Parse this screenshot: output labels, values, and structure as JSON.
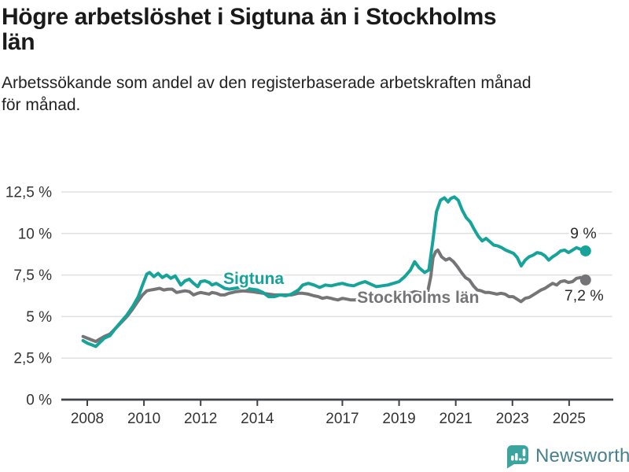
{
  "header": {
    "title_lines": [
      "Högre arbetslöshet i Sigtuna än i Stockholms",
      "län"
    ],
    "subtitle_lines": [
      "Arbetssökande som andel av den registerbaserade arbetskraften månad",
      "för månad."
    ]
  },
  "footer": {
    "brand": "Newsworthy",
    "logo_icon": "bar-chart-speech-bubble",
    "logo_color": "#3aa49f",
    "brand_text_color": "#46818e"
  },
  "chart_data": {
    "type": "line",
    "title": "Högre arbetslöshet i Sigtuna än i Stockholms län",
    "subtitle": "Arbetssökande som andel av den registerbaserade arbetskraften månad för månad.",
    "unit": "%",
    "grid": true,
    "xlim": [
      2007.85,
      2026.4
    ],
    "ylim": [
      0,
      13.2
    ],
    "x_ticks": [
      2008,
      2010,
      2012,
      2014,
      2017,
      2019,
      2021,
      2023,
      2025
    ],
    "y_ticks": [
      {
        "value": 0,
        "label": "0 %"
      },
      {
        "value": 2.5,
        "label": "2,5 %"
      },
      {
        "value": 5,
        "label": "5 %"
      },
      {
        "value": 7.5,
        "label": "7,5 %"
      },
      {
        "value": 10,
        "label": "10 %"
      },
      {
        "value": 12.5,
        "label": "12,5 %"
      }
    ],
    "colors": {
      "grid": "#e0e0e0",
      "axis": "#3d434b",
      "tick_label": "#333333",
      "end_label": "#2a2a2a"
    },
    "series": [
      {
        "name": "Sigtuna",
        "color": "#15a39a",
        "end_label": "9 %",
        "label_at": [
          2012.8,
          7.3
        ],
        "points": [
          [
            2007.85,
            3.55
          ],
          [
            2008.0,
            3.4
          ],
          [
            2008.15,
            3.3
          ],
          [
            2008.3,
            3.2
          ],
          [
            2008.45,
            3.45
          ],
          [
            2008.6,
            3.7
          ],
          [
            2008.8,
            3.85
          ],
          [
            2009.0,
            4.3
          ],
          [
            2009.2,
            4.7
          ],
          [
            2009.4,
            5.1
          ],
          [
            2009.6,
            5.6
          ],
          [
            2009.8,
            6.2
          ],
          [
            2009.95,
            6.9
          ],
          [
            2010.1,
            7.55
          ],
          [
            2010.2,
            7.65
          ],
          [
            2010.35,
            7.4
          ],
          [
            2010.5,
            7.6
          ],
          [
            2010.65,
            7.35
          ],
          [
            2010.8,
            7.5
          ],
          [
            2010.95,
            7.3
          ],
          [
            2011.1,
            7.45
          ],
          [
            2011.3,
            6.9
          ],
          [
            2011.45,
            7.15
          ],
          [
            2011.6,
            7.25
          ],
          [
            2011.75,
            7.0
          ],
          [
            2011.9,
            6.8
          ],
          [
            2012.0,
            7.1
          ],
          [
            2012.15,
            7.15
          ],
          [
            2012.3,
            7.05
          ],
          [
            2012.4,
            6.9
          ],
          [
            2012.55,
            7.0
          ],
          [
            2012.7,
            6.85
          ],
          [
            2012.85,
            6.7
          ],
          [
            2013.0,
            6.65
          ],
          [
            2013.2,
            6.7
          ],
          [
            2013.4,
            6.75
          ],
          [
            2013.6,
            6.7
          ],
          [
            2013.8,
            6.65
          ],
          [
            2014.0,
            6.6
          ],
          [
            2014.2,
            6.45
          ],
          [
            2014.4,
            6.2
          ],
          [
            2014.6,
            6.2
          ],
          [
            2014.8,
            6.3
          ],
          [
            2015.0,
            6.25
          ],
          [
            2015.2,
            6.35
          ],
          [
            2015.45,
            6.6
          ],
          [
            2015.6,
            6.9
          ],
          [
            2015.8,
            7.0
          ],
          [
            2016.0,
            6.9
          ],
          [
            2016.2,
            6.75
          ],
          [
            2016.4,
            6.9
          ],
          [
            2016.6,
            6.85
          ],
          [
            2016.85,
            6.95
          ],
          [
            2017.0,
            7.0
          ],
          [
            2017.2,
            6.9
          ],
          [
            2017.4,
            6.85
          ],
          [
            2017.6,
            7.0
          ],
          [
            2017.8,
            7.1
          ],
          [
            2018.0,
            6.95
          ],
          [
            2018.2,
            6.8
          ],
          [
            2018.4,
            6.85
          ],
          [
            2018.6,
            6.9
          ],
          [
            2018.8,
            7.0
          ],
          [
            2019.0,
            7.1
          ],
          [
            2019.2,
            7.4
          ],
          [
            2019.4,
            7.8
          ],
          [
            2019.55,
            8.3
          ],
          [
            2019.7,
            7.95
          ],
          [
            2019.9,
            7.65
          ],
          [
            2020.05,
            7.8
          ],
          [
            2020.18,
            9.4
          ],
          [
            2020.32,
            11.3
          ],
          [
            2020.46,
            12.0
          ],
          [
            2020.6,
            12.15
          ],
          [
            2020.73,
            11.9
          ],
          [
            2020.82,
            12.1
          ],
          [
            2020.95,
            12.2
          ],
          [
            2021.09,
            12.0
          ],
          [
            2021.23,
            11.4
          ],
          [
            2021.37,
            10.95
          ],
          [
            2021.51,
            10.7
          ],
          [
            2021.65,
            10.25
          ],
          [
            2021.79,
            9.85
          ],
          [
            2021.93,
            9.55
          ],
          [
            2022.07,
            9.7
          ],
          [
            2022.21,
            9.5
          ],
          [
            2022.34,
            9.3
          ],
          [
            2022.48,
            9.25
          ],
          [
            2022.62,
            9.15
          ],
          [
            2022.76,
            9.0
          ],
          [
            2022.9,
            8.9
          ],
          [
            2023.04,
            8.8
          ],
          [
            2023.17,
            8.55
          ],
          [
            2023.31,
            8.05
          ],
          [
            2023.45,
            8.4
          ],
          [
            2023.59,
            8.6
          ],
          [
            2023.73,
            8.7
          ],
          [
            2023.87,
            8.85
          ],
          [
            2024.01,
            8.8
          ],
          [
            2024.15,
            8.65
          ],
          [
            2024.28,
            8.4
          ],
          [
            2024.42,
            8.6
          ],
          [
            2024.56,
            8.75
          ],
          [
            2024.7,
            8.95
          ],
          [
            2024.84,
            9.0
          ],
          [
            2024.98,
            8.85
          ],
          [
            2025.12,
            9.0
          ],
          [
            2025.26,
            9.15
          ],
          [
            2025.4,
            9.05
          ],
          [
            2025.58,
            8.95
          ]
        ]
      },
      {
        "name": "Stockholms län",
        "color": "#757578",
        "end_label": "7,2 %",
        "label_at": [
          2017.52,
          6.15
        ],
        "points": [
          [
            2007.85,
            3.8
          ],
          [
            2008.0,
            3.7
          ],
          [
            2008.15,
            3.6
          ],
          [
            2008.3,
            3.5
          ],
          [
            2008.45,
            3.65
          ],
          [
            2008.6,
            3.8
          ],
          [
            2008.8,
            3.95
          ],
          [
            2009.0,
            4.3
          ],
          [
            2009.2,
            4.65
          ],
          [
            2009.4,
            5.0
          ],
          [
            2009.6,
            5.45
          ],
          [
            2009.8,
            5.95
          ],
          [
            2009.95,
            6.3
          ],
          [
            2010.1,
            6.55
          ],
          [
            2010.25,
            6.6
          ],
          [
            2010.4,
            6.65
          ],
          [
            2010.55,
            6.7
          ],
          [
            2010.7,
            6.6
          ],
          [
            2010.85,
            6.65
          ],
          [
            2011.0,
            6.65
          ],
          [
            2011.15,
            6.45
          ],
          [
            2011.3,
            6.5
          ],
          [
            2011.45,
            6.55
          ],
          [
            2011.6,
            6.5
          ],
          [
            2011.75,
            6.3
          ],
          [
            2011.9,
            6.4
          ],
          [
            2012.0,
            6.45
          ],
          [
            2012.15,
            6.4
          ],
          [
            2012.3,
            6.35
          ],
          [
            2012.4,
            6.45
          ],
          [
            2012.55,
            6.4
          ],
          [
            2012.7,
            6.3
          ],
          [
            2012.85,
            6.3
          ],
          [
            2013.0,
            6.4
          ],
          [
            2013.25,
            6.5
          ],
          [
            2013.5,
            6.55
          ],
          [
            2013.8,
            6.5
          ],
          [
            2014.0,
            6.45
          ],
          [
            2014.2,
            6.4
          ],
          [
            2014.4,
            6.35
          ],
          [
            2014.6,
            6.3
          ],
          [
            2014.8,
            6.3
          ],
          [
            2015.0,
            6.3
          ],
          [
            2015.2,
            6.3
          ],
          [
            2015.45,
            6.4
          ],
          [
            2015.6,
            6.4
          ],
          [
            2015.8,
            6.35
          ],
          [
            2016.0,
            6.25
          ],
          [
            2016.15,
            6.2
          ],
          [
            2016.3,
            6.1
          ],
          [
            2016.45,
            6.15
          ],
          [
            2016.6,
            6.1
          ],
          [
            2016.7,
            6.05
          ],
          [
            2016.85,
            6.0
          ],
          [
            2017.0,
            6.1
          ],
          [
            2017.15,
            6.05
          ],
          [
            2017.3,
            6.0
          ],
          [
            2017.45,
            6.0
          ],
          [
            2017.6,
            6.05
          ],
          [
            2017.7,
            6.0
          ],
          [
            2017.95,
            6.05
          ],
          [
            2018.1,
            6.0
          ],
          [
            2018.25,
            6.0
          ],
          [
            2018.4,
            6.05
          ],
          [
            2018.5,
            6.1
          ],
          [
            2018.65,
            6.2
          ],
          [
            2018.8,
            6.3
          ],
          [
            2018.95,
            6.4
          ],
          [
            2019.1,
            6.45
          ],
          [
            2019.25,
            6.4
          ],
          [
            2019.4,
            6.4
          ],
          [
            2019.55,
            6.5
          ],
          [
            2019.7,
            6.45
          ],
          [
            2019.9,
            6.4
          ],
          [
            2020.0,
            6.4
          ],
          [
            2020.12,
            7.4
          ],
          [
            2020.2,
            8.55
          ],
          [
            2020.29,
            8.9
          ],
          [
            2020.37,
            9.0
          ],
          [
            2020.5,
            8.6
          ],
          [
            2020.65,
            8.4
          ],
          [
            2020.78,
            8.5
          ],
          [
            2020.92,
            8.3
          ],
          [
            2021.06,
            8.0
          ],
          [
            2021.2,
            7.65
          ],
          [
            2021.34,
            7.35
          ],
          [
            2021.48,
            7.2
          ],
          [
            2021.62,
            6.85
          ],
          [
            2021.76,
            6.6
          ],
          [
            2021.9,
            6.55
          ],
          [
            2022.04,
            6.45
          ],
          [
            2022.18,
            6.45
          ],
          [
            2022.32,
            6.4
          ],
          [
            2022.45,
            6.35
          ],
          [
            2022.6,
            6.4
          ],
          [
            2022.74,
            6.35
          ],
          [
            2022.88,
            6.2
          ],
          [
            2023.02,
            6.2
          ],
          [
            2023.16,
            6.05
          ],
          [
            2023.3,
            5.9
          ],
          [
            2023.45,
            6.1
          ],
          [
            2023.59,
            6.15
          ],
          [
            2023.73,
            6.3
          ],
          [
            2023.87,
            6.45
          ],
          [
            2024.01,
            6.6
          ],
          [
            2024.15,
            6.7
          ],
          [
            2024.28,
            6.85
          ],
          [
            2024.42,
            7.0
          ],
          [
            2024.56,
            6.9
          ],
          [
            2024.7,
            7.1
          ],
          [
            2024.84,
            7.15
          ],
          [
            2024.98,
            7.05
          ],
          [
            2025.12,
            7.1
          ],
          [
            2025.26,
            7.3
          ],
          [
            2025.4,
            7.35
          ],
          [
            2025.51,
            7.25
          ],
          [
            2025.58,
            7.2
          ]
        ]
      }
    ]
  }
}
